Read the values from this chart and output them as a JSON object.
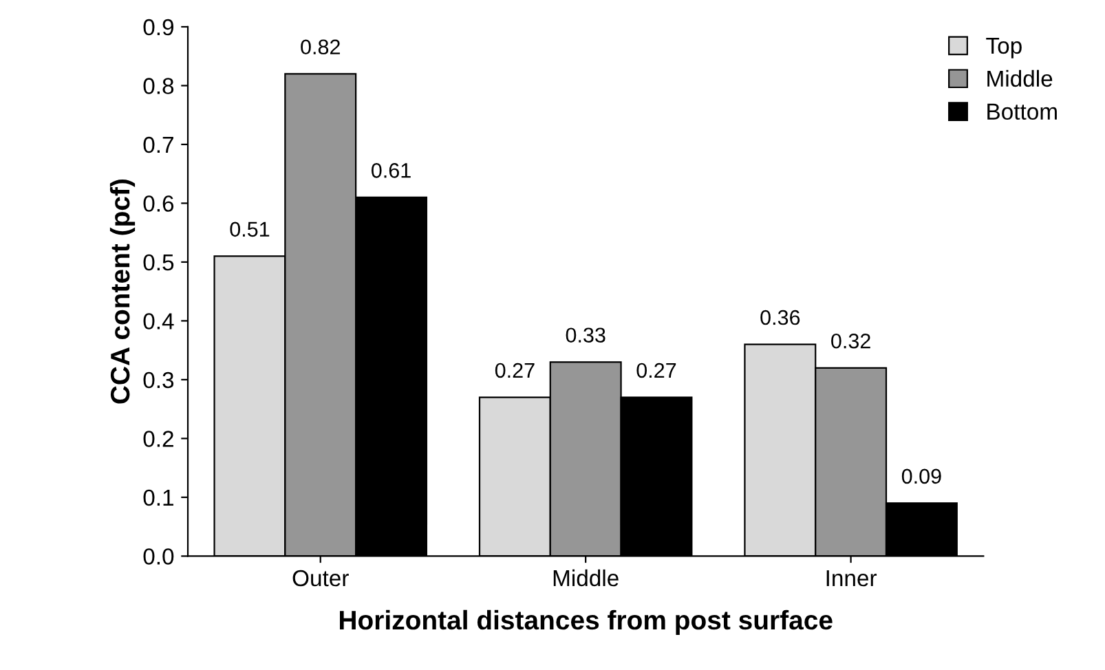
{
  "chart_data": {
    "type": "bar",
    "xlabel": "Horizontal distances from post surface",
    "ylabel": "CCA content (pcf)",
    "categories": [
      "Outer",
      "Middle",
      "Inner"
    ],
    "series": [
      {
        "name": "Top",
        "color": "#d9d9d9",
        "values": [
          0.51,
          0.27,
          0.36
        ]
      },
      {
        "name": "Middle",
        "color": "#969696",
        "values": [
          0.82,
          0.33,
          0.32
        ]
      },
      {
        "name": "Bottom",
        "color": "#000000",
        "values": [
          0.61,
          0.27,
          0.09
        ]
      }
    ],
    "ylim": [
      0,
      0.9
    ],
    "yticks": [
      {
        "value": 0,
        "label": "0.0"
      },
      0.1,
      0.2,
      0.3,
      0.4,
      0.5,
      0.6,
      0.7,
      0.8,
      0.9
    ],
    "data_labels": true,
    "grid": false,
    "legend": "top right"
  }
}
